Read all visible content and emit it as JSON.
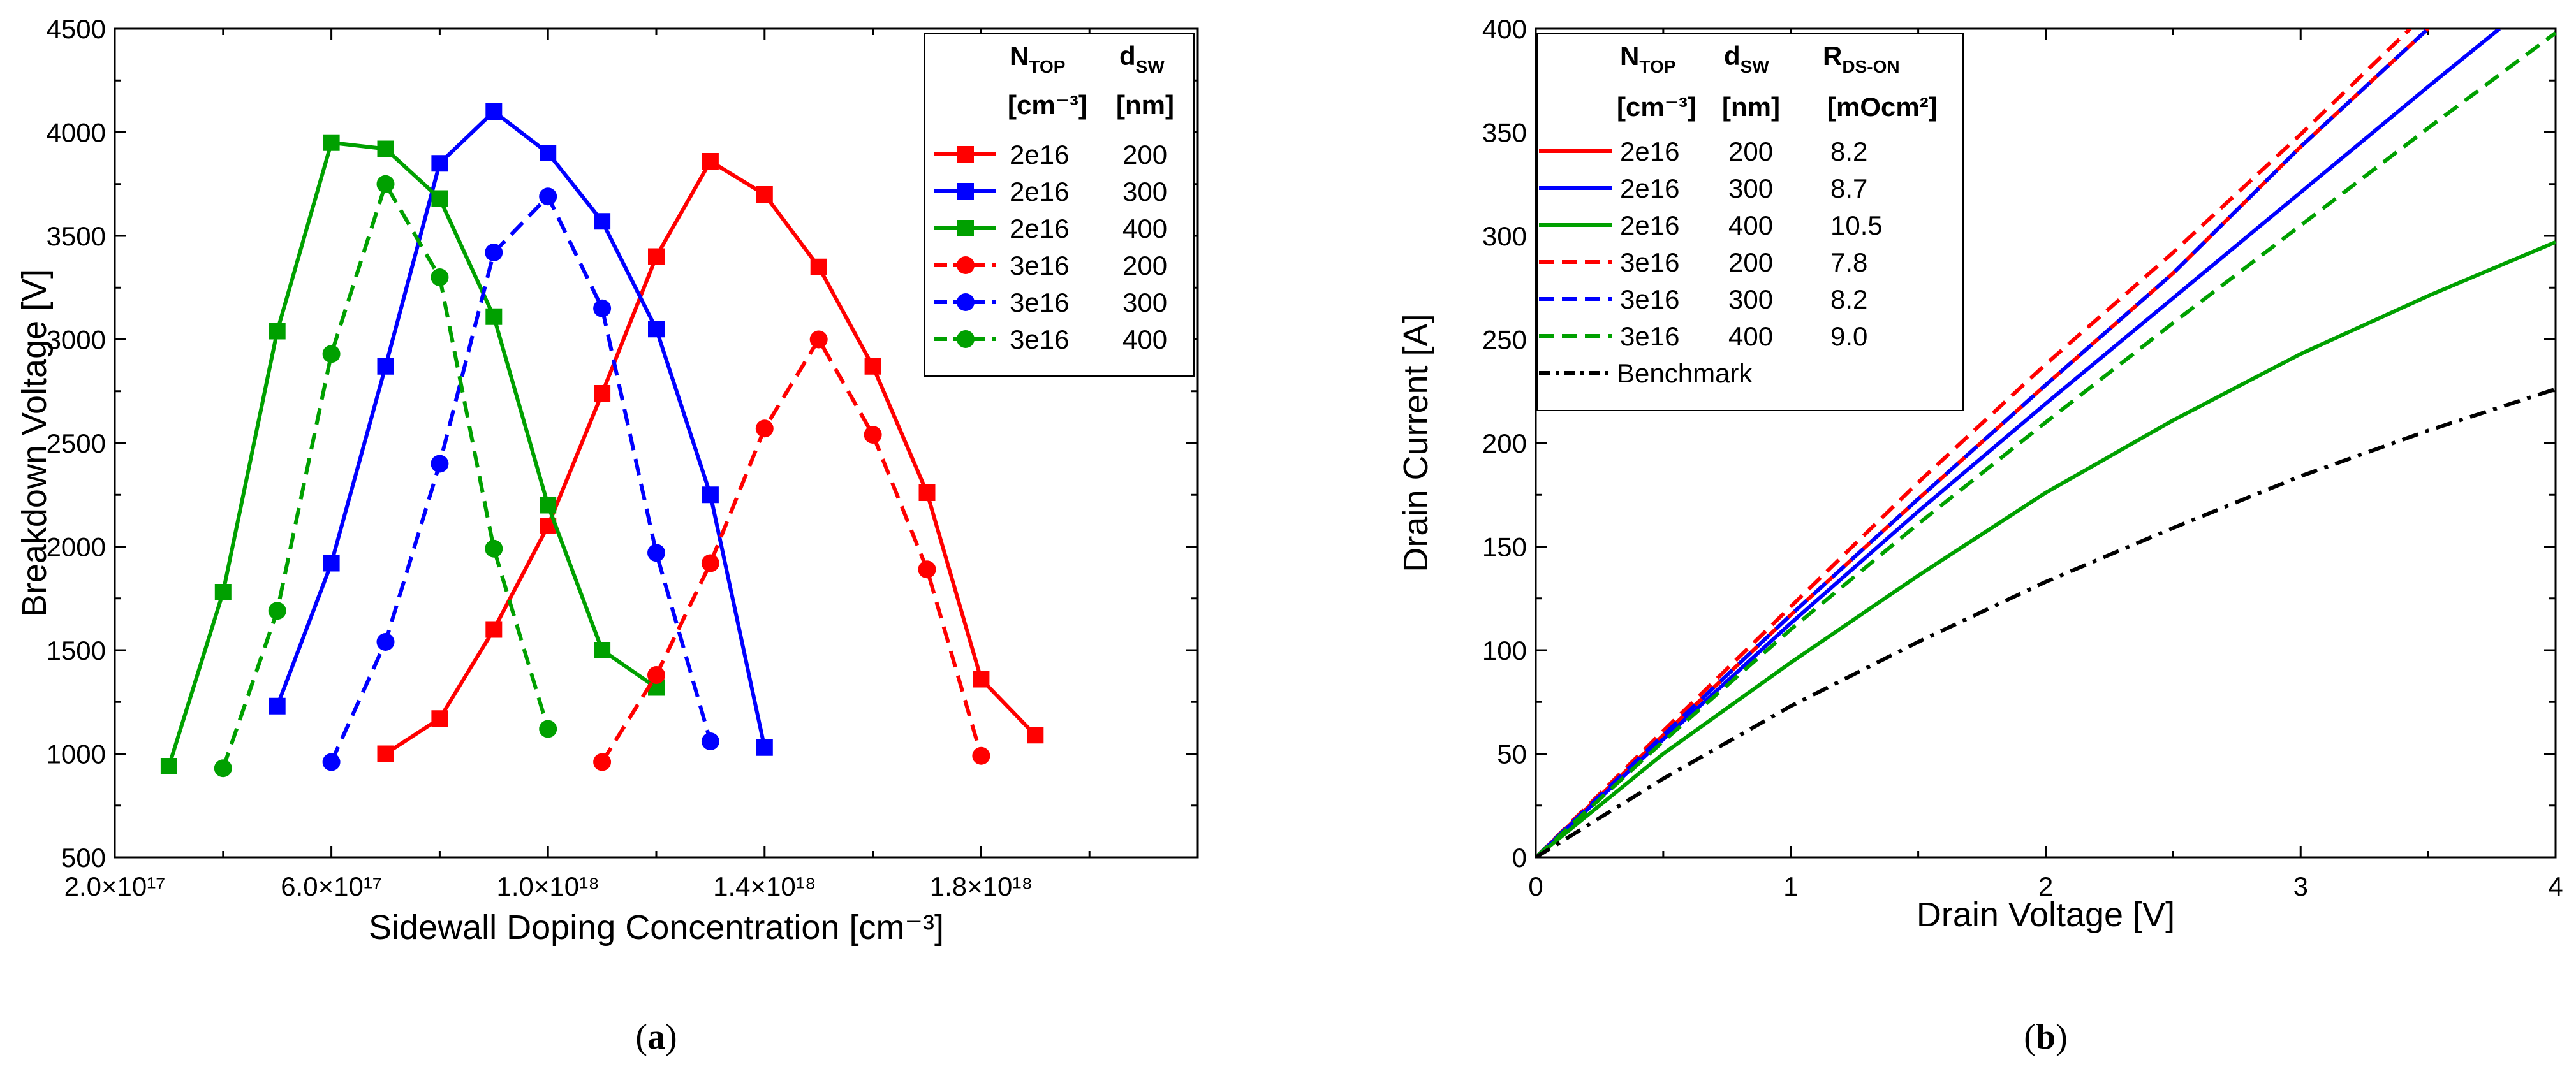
{
  "chart_data": [
    {
      "type": "line",
      "panel": "a",
      "caption_open": "(",
      "caption_letter": "a",
      "caption_close": ")",
      "xlabel": "Sidewall Doping Concentration [cm⁻³]",
      "ylabel": "Breakdown Voltage [V]",
      "xlim": [
        2e+17,
        2.2e+18
      ],
      "ylim": [
        500,
        4500
      ],
      "xtick_labels": [
        "2.0×10¹⁷",
        "6.0×10¹⁷",
        "1.0×10¹⁸",
        "1.4×10¹⁸",
        "1.8×10¹⁸"
      ],
      "ytick_labels": [
        "500",
        "1000",
        "1500",
        "2000",
        "2500",
        "3000",
        "3500",
        "4000",
        "4500"
      ],
      "legend": {
        "position": "top-right",
        "header1_main": "N",
        "header1_sub": "TOP",
        "header2_main": "d",
        "header2_sub": "SW",
        "unit1": "[cm⁻³]",
        "unit2": "[nm]"
      },
      "series": [
        {
          "ntop": "2e16",
          "dsw": "200",
          "color": "#ff0000",
          "dash": "solid",
          "marker": "square",
          "x": [
            7e+17,
            8e+17,
            9e+17,
            1e+18,
            1.1e+18,
            1.2e+18,
            1.3e+18,
            1.4e+18,
            1.5e+18,
            1.6e+18,
            1.7e+18,
            1.8e+18,
            1.9e+18
          ],
          "y": [
            1000,
            1170,
            1600,
            2100,
            2740,
            3400,
            3860,
            3700,
            3350,
            2870,
            2260,
            1360,
            1090
          ]
        },
        {
          "ntop": "2e16",
          "dsw": "300",
          "color": "#0000ff",
          "dash": "solid",
          "marker": "square",
          "x": [
            5e+17,
            6e+17,
            7e+17,
            8e+17,
            9e+17,
            1e+18,
            1.1e+18,
            1.2e+18,
            1.3e+18,
            1.4e+18
          ],
          "y": [
            1230,
            1920,
            2870,
            3850,
            4100,
            3900,
            3570,
            3050,
            2250,
            1030
          ]
        },
        {
          "ntop": "2e16",
          "dsw": "400",
          "color": "#00a000",
          "dash": "solid",
          "marker": "square",
          "x": [
            3e+17,
            4e+17,
            5e+17,
            6e+17,
            7e+17,
            8e+17,
            9e+17,
            1e+18,
            1.1e+18,
            1.2e+18
          ],
          "y": [
            940,
            1780,
            3040,
            3950,
            3920,
            3680,
            3110,
            2200,
            1500,
            1320
          ]
        },
        {
          "ntop": "3e16",
          "dsw": "200",
          "color": "#ff0000",
          "dash": "dashed",
          "marker": "circle",
          "x": [
            1.1e+18,
            1.2e+18,
            1.3e+18,
            1.4e+18,
            1.5e+18,
            1.6e+18,
            1.7e+18,
            1.8e+18
          ],
          "y": [
            960,
            1380,
            1920,
            2570,
            3000,
            2540,
            1890,
            990
          ]
        },
        {
          "ntop": "3e16",
          "dsw": "300",
          "color": "#0000ff",
          "dash": "dashed",
          "marker": "circle",
          "x": [
            6e+17,
            7e+17,
            8e+17,
            9e+17,
            1e+18,
            1.1e+18,
            1.2e+18,
            1.3e+18
          ],
          "y": [
            960,
            1540,
            2400,
            3420,
            3690,
            3150,
            1970,
            1060
          ]
        },
        {
          "ntop": "3e16",
          "dsw": "400",
          "color": "#00a000",
          "dash": "dashed",
          "marker": "circle",
          "x": [
            4e+17,
            5e+17,
            6e+17,
            7e+17,
            8e+17,
            9e+17,
            1e+18
          ],
          "y": [
            930,
            1690,
            2930,
            3750,
            3300,
            1990,
            1120
          ]
        }
      ]
    },
    {
      "type": "line",
      "panel": "b",
      "caption_open": "(",
      "caption_letter": "b",
      "caption_close": ")",
      "xlabel": "Drain Voltage [V]",
      "ylabel": "Drain Current [A]",
      "xlim": [
        0,
        4
      ],
      "ylim": [
        0,
        400
      ],
      "xtick_labels": [
        "0",
        "1",
        "2",
        "3",
        "4"
      ],
      "ytick_labels": [
        "0",
        "50",
        "100",
        "150",
        "200",
        "250",
        "300",
        "350",
        "400"
      ],
      "legend": {
        "position": "top-left",
        "header1_main": "N",
        "header1_sub": "TOP",
        "header2_main": "d",
        "header2_sub": "SW",
        "header3_main": "R",
        "header3_sub": "DS-ON",
        "unit1": "[cm⁻³]",
        "unit2": "[nm]",
        "unit3": "[mOcm²]",
        "benchmark_label": "Benchmark"
      },
      "series": [
        {
          "ntop": "2e16",
          "dsw": "200",
          "rdson": "8.2",
          "color": "#ff0000",
          "dash": "solid",
          "x": [
            0,
            0.5,
            1,
            1.5,
            2,
            2.5,
            3,
            3.5
          ],
          "y": [
            0,
            59,
            117,
            173,
            228,
            282,
            343,
            400
          ]
        },
        {
          "ntop": "2e16",
          "dsw": "300",
          "rdson": "8.7",
          "color": "#0000ff",
          "dash": "solid",
          "x": [
            0,
            0.5,
            1,
            1.5,
            2,
            2.5,
            3,
            3.5,
            3.78
          ],
          "y": [
            0,
            57,
            113,
            167,
            219,
            270,
            321,
            372,
            400
          ]
        },
        {
          "ntop": "2e16",
          "dsw": "400",
          "rdson": "10.5",
          "color": "#00a000",
          "dash": "solid",
          "x": [
            0,
            0.5,
            1,
            1.5,
            2,
            2.5,
            3,
            3.5,
            4
          ],
          "y": [
            0,
            50,
            94,
            136,
            176,
            211,
            243,
            271,
            297
          ]
        },
        {
          "ntop": "3e16",
          "dsw": "200",
          "rdson": "7.8",
          "color": "#ff0000",
          "dash": "dashed",
          "x": [
            0,
            0.5,
            1,
            1.5,
            2,
            2.5,
            3,
            3.43
          ],
          "y": [
            0,
            61,
            121,
            181,
            238,
            292,
            349,
            400
          ]
        },
        {
          "ntop": "3e16",
          "dsw": "300",
          "rdson": "8.2",
          "color": "#0000ff",
          "dash": "dashed",
          "x": [
            0,
            0.5,
            1,
            1.5,
            2,
            2.5,
            3,
            3.5
          ],
          "y": [
            0,
            59,
            117,
            173,
            228,
            282,
            343,
            400
          ]
        },
        {
          "ntop": "3e16",
          "dsw": "400",
          "rdson": "9.0",
          "color": "#00a000",
          "dash": "dashed",
          "x": [
            0,
            0.5,
            1,
            1.5,
            2,
            2.5,
            3,
            3.5,
            4
          ],
          "y": [
            0,
            56,
            110,
            161,
            210,
            258,
            305,
            352,
            398
          ]
        },
        {
          "label": "Benchmark",
          "color": "#000000",
          "dash": "dashdot",
          "x": [
            0,
            0.5,
            1,
            1.5,
            2,
            2.5,
            3,
            3.5,
            4
          ],
          "y": [
            0,
            38,
            73,
            104,
            133,
            159,
            184,
            206,
            226
          ]
        }
      ]
    }
  ]
}
